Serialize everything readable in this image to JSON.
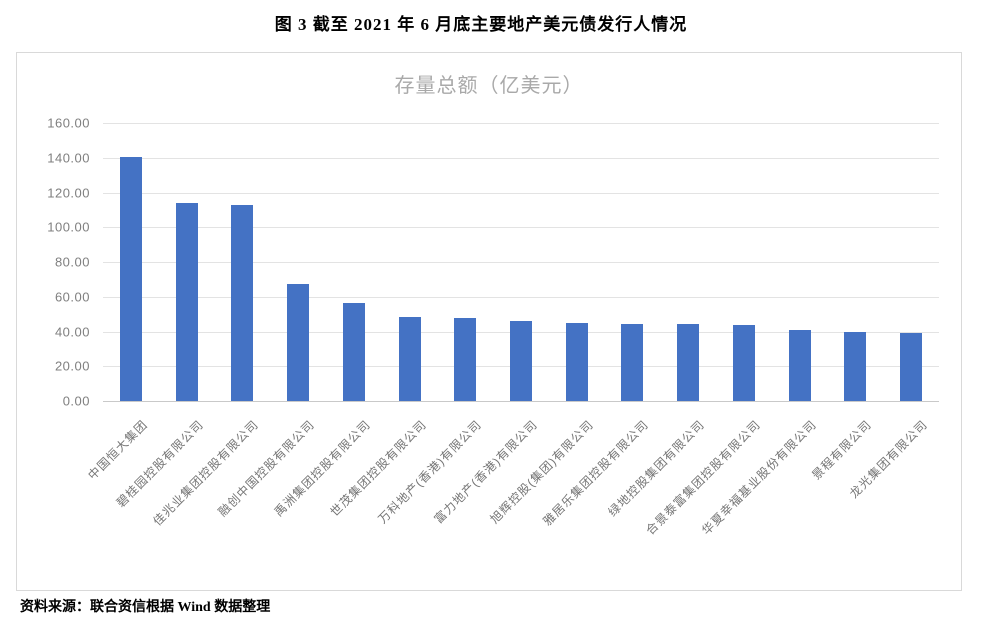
{
  "page": {
    "title": "图 3  截至 2021 年 6 月底主要地产美元债发行人情况",
    "source_note": "资料来源：联合资信根据 Wind 数据整理"
  },
  "chart_data": {
    "type": "bar",
    "title": "存量总额（亿美元）",
    "xlabel": "",
    "ylabel": "",
    "categories": [
      "中国恒大集团",
      "碧桂园控股有限公司",
      "佳兆业集团控股有限公司",
      "融创中国控股有限公司",
      "禹洲集团控股有限公司",
      "世茂集团控股有限公司",
      "万科地产(香港)有限公司",
      "富力地产(香港)有限公司",
      "旭辉控股(集团)有限公司",
      "雅居乐集团控股有限公司",
      "绿地控股集团有限公司",
      "合景泰富集团控股有限公司",
      "华夏幸福基业股份有限公司",
      "景程有限公司",
      "龙光集团有限公司"
    ],
    "values": [
      140.4,
      114.0,
      112.6,
      67.6,
      56.3,
      48.5,
      47.5,
      46.2,
      45.0,
      44.2,
      44.2,
      43.6,
      40.8,
      39.8,
      39.2
    ],
    "ylim": [
      0,
      160
    ],
    "ytick_interval": 20,
    "ytick_labels": [
      "0.00",
      "20.00",
      "40.00",
      "60.00",
      "80.00",
      "100.00",
      "120.00",
      "140.00",
      "160.00"
    ],
    "grid": true,
    "legend": "none",
    "bar_color": "#4472c4",
    "colors": {
      "bar": "#4472c4",
      "gridline": "#e3e3e3",
      "axis_line": "#c9c9c9",
      "chart_title_text": "#a9a9a9",
      "tick_label_text": "#7f7f7f"
    }
  }
}
